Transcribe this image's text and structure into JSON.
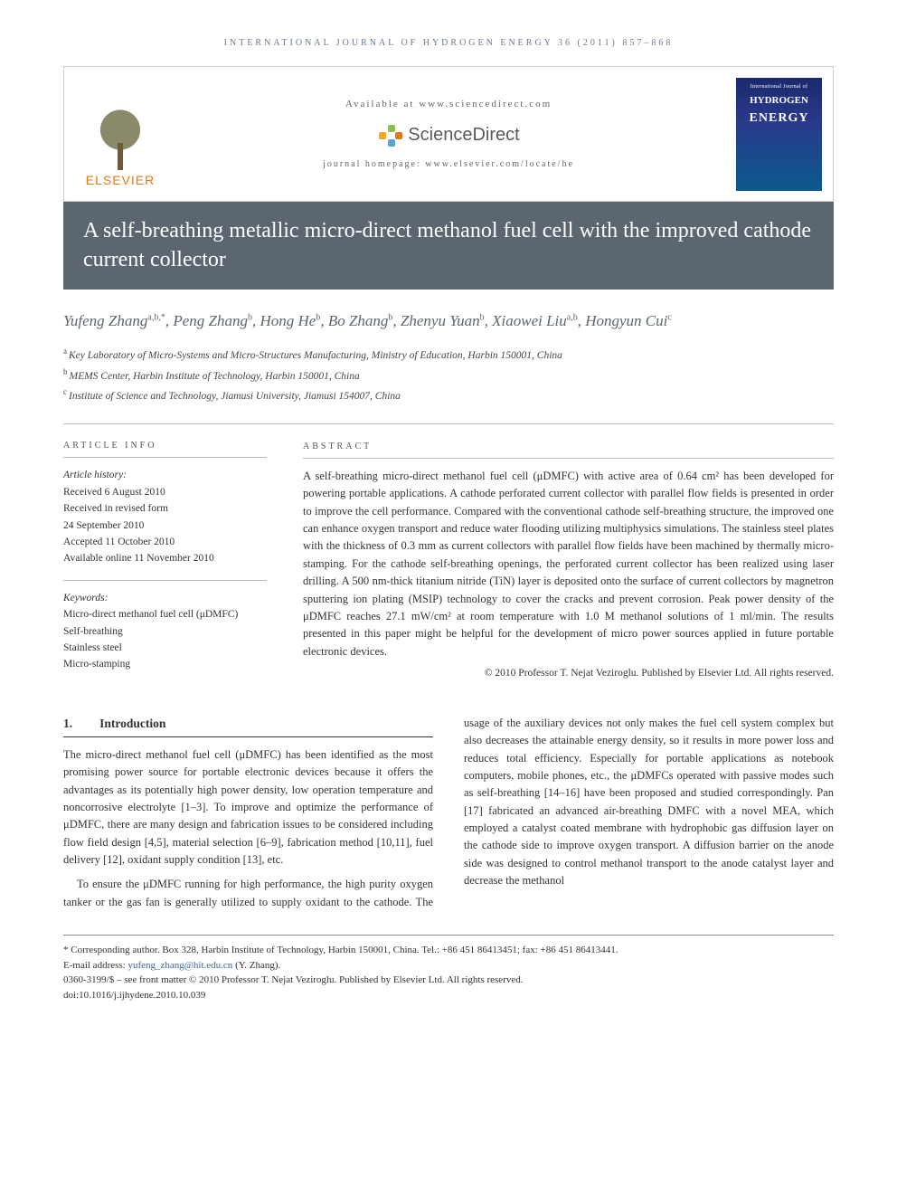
{
  "running_head": "INTERNATIONAL JOURNAL OF HYDROGEN ENERGY 36 (2011) 857–868",
  "header": {
    "available_at": "Available at www.sciencedirect.com",
    "brand": "ScienceDirect",
    "homepage": "journal homepage: www.elsevier.com/locate/he",
    "publisher": "ELSEVIER",
    "cover": {
      "line1": "International Journal of",
      "line2": "HYDROGEN",
      "line3": "ENERGY"
    }
  },
  "title": "A self-breathing metallic micro-direct methanol fuel cell with the improved cathode current collector",
  "authors_html": "Yufeng Zhang",
  "authors": [
    {
      "name": "Yufeng Zhang",
      "aff": "a,b,*"
    },
    {
      "name": "Peng Zhang",
      "aff": "b"
    },
    {
      "name": "Hong He",
      "aff": "b"
    },
    {
      "name": "Bo Zhang",
      "aff": "b"
    },
    {
      "name": "Zhenyu Yuan",
      "aff": "b"
    },
    {
      "name": "Xiaowei Liu",
      "aff": "a,b"
    },
    {
      "name": "Hongyun Cui",
      "aff": "c"
    }
  ],
  "affiliations": [
    {
      "key": "a",
      "text": "Key Laboratory of Micro-Systems and Micro-Structures Manufacturing, Ministry of Education, Harbin 150001, China"
    },
    {
      "key": "b",
      "text": "MEMS Center, Harbin Institute of Technology, Harbin 150001, China"
    },
    {
      "key": "c",
      "text": "Institute of Science and Technology, Jiamusi University, Jiamusi 154007, China"
    }
  ],
  "article_info": {
    "label": "ARTICLE INFO",
    "history_head": "Article history:",
    "history": [
      "Received 6 August 2010",
      "Received in revised form",
      "24 September 2010",
      "Accepted 11 October 2010",
      "Available online 11 November 2010"
    ],
    "keywords_head": "Keywords:",
    "keywords": [
      "Micro-direct methanol fuel cell (μDMFC)",
      "Self-breathing",
      "Stainless steel",
      "Micro-stamping"
    ]
  },
  "abstract": {
    "label": "ABSTRACT",
    "text": "A self-breathing micro-direct methanol fuel cell (μDMFC) with active area of 0.64 cm² has been developed for powering portable applications. A cathode perforated current collector with parallel flow fields is presented in order to improve the cell performance. Compared with the conventional cathode self-breathing structure, the improved one can enhance oxygen transport and reduce water flooding utilizing multiphysics simulations. The stainless steel plates with the thickness of 0.3 mm as current collectors with parallel flow fields have been machined by thermally micro-stamping. For the cathode self-breathing openings, the perforated current collector has been realized using laser drilling. A 500 nm-thick titanium nitride (TiN) layer is deposited onto the surface of current collectors by magnetron sputtering ion plating (MSIP) technology to cover the cracks and prevent corrosion. Peak power density of the μDMFC reaches 27.1 mW/cm² at room temperature with 1.0 M methanol solutions of 1 ml/min. The results presented in this paper might be helpful for the development of micro power sources applied in future portable electronic devices.",
    "copyright": "© 2010 Professor T. Nejat Veziroglu. Published by Elsevier Ltd. All rights reserved."
  },
  "section1": {
    "num": "1.",
    "title": "Introduction",
    "p1": "The micro-direct methanol fuel cell (μDMFC) has been identified as the most promising power source for portable electronic devices because it offers the advantages as its potentially high power density, low operation temperature and noncorrosive electrolyte [1–3]. To improve and optimize the performance of μDMFC, there are many design and fabrication issues to be considered including flow field design [4,5], material selection [6–9], fabrication method [10,11], fuel delivery [12], oxidant supply condition [13], etc.",
    "p2": "To ensure the μDMFC running for high performance, the high purity oxygen tanker or the gas fan is generally utilized to supply oxidant to the cathode. The usage of the auxiliary devices not only makes the fuel cell system complex but also decreases the attainable energy density, so it results in more power loss and reduces total efficiency. Especially for portable applications as notebook computers, mobile phones, etc., the μDMFCs operated with passive modes such as self-breathing [14–16] have been proposed and studied correspondingly. Pan [17] fabricated an advanced air-breathing DMFC with a novel MEA, which employed a catalyst coated membrane with hydrophobic gas diffusion layer on the cathode side to improve oxygen transport. A diffusion barrier on the anode side was designed to control methanol transport to the anode catalyst layer and decrease the methanol"
  },
  "footer": {
    "corresponding": "* Corresponding author. Box 328, Harbin Institute of Technology, Harbin 150001, China. Tel.: +86 451 86413451; fax: +86 451 86413441.",
    "email_label": "E-mail address: ",
    "email": "yufeng_zhang@hit.edu.cn",
    "email_who": " (Y. Zhang).",
    "issn": "0360-3199/$ – see front matter © 2010 Professor T. Nejat Veziroglu. Published by Elsevier Ltd. All rights reserved.",
    "doi": "doi:10.1016/j.ijhydene.2010.10.039"
  },
  "colors": {
    "titlebar_bg": "#5b6670",
    "titlebar_fg": "#ffffff",
    "link": "#3366aa",
    "publisher_orange": "#e67817"
  }
}
